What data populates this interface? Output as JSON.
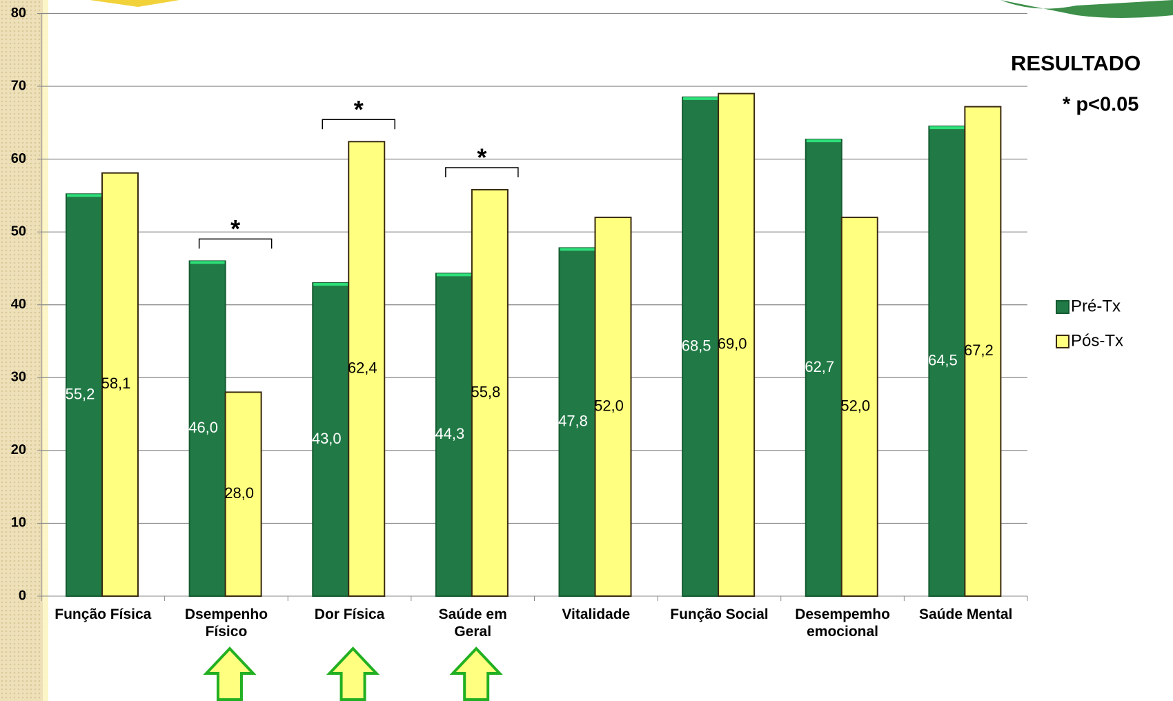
{
  "chart_data": {
    "type": "bar",
    "title": "RESULTADO",
    "note": "* p<0.05",
    "categories": [
      "Função Física",
      "Dsempenho\nFísico",
      "Dor Física",
      "Saúde em\nGeral",
      "Vitalidade",
      "Função Social",
      "Desempemho\nemocional",
      "Saúde Mental"
    ],
    "series": [
      {
        "name": "Pré-Tx",
        "color": "#217a46",
        "values": [
          55.2,
          46.0,
          43.0,
          44.3,
          47.8,
          68.5,
          62.7,
          64.5
        ],
        "value_labels": [
          "55,2",
          "46,0",
          "43,0",
          "44,3",
          "47,8",
          "68,5",
          "62,7",
          "64,5"
        ]
      },
      {
        "name": "Pós-Tx",
        "color": "#ffff80",
        "values": [
          58.1,
          28.0,
          62.4,
          55.8,
          52.0,
          69.0,
          52.0,
          67.2
        ],
        "value_labels": [
          "58,1",
          "28,0",
          "62,4",
          "55,8",
          "52,0",
          "69,0",
          "52,0",
          "67,2"
        ]
      }
    ],
    "significance_marks": [
      null,
      "*",
      "*",
      "*",
      null,
      null,
      null,
      null
    ],
    "ylim": [
      0,
      80
    ],
    "yticks": [
      0,
      10,
      20,
      30,
      40,
      50,
      60,
      70,
      80
    ],
    "grid": true,
    "legend": "right"
  }
}
